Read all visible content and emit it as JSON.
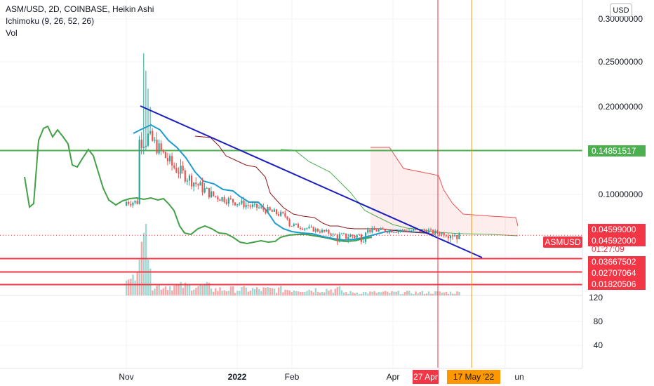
{
  "legend": {
    "title": "ASM/USD, 2D, COINBASE, Heikin Ashi",
    "ichimoku": "Ichimoku (9, 26, 52, 26)",
    "volume": "Vol"
  },
  "currency_button": "USD",
  "chart_data": {
    "type": "candlestick",
    "symbol": "ASMUSD",
    "price_axis": {
      "ticks": [
        "0.30000000",
        "0.25000000",
        "0.20000000",
        "0.10000000"
      ],
      "tick_values": [
        0.3,
        0.25,
        0.2,
        0.1
      ]
    },
    "volume_axis": {
      "ticks": [
        "120",
        "80",
        "40"
      ],
      "tick_values": [
        120,
        80,
        40
      ]
    },
    "time_axis": {
      "ticks": [
        "Nov",
        "2022",
        "Feb",
        "Apr",
        "un"
      ],
      "bold": [
        false,
        true,
        false,
        false,
        false
      ],
      "markers": [
        {
          "label": "27 Apr",
          "color": "#f23645"
        },
        {
          "label": "17 May '22",
          "color": "#ff9800"
        }
      ]
    },
    "price_labels": [
      {
        "text": "0.14851517",
        "value": 0.14851517,
        "color": "#4caf50"
      },
      {
        "text": "0.04599000",
        "value": 0.04599,
        "color": "#f23645"
      },
      {
        "text": "0.04592000",
        "value": 0.04592,
        "color": "#f23645"
      },
      {
        "text": "01:27:09",
        "value": 0.0435,
        "color": "#f23645"
      },
      {
        "text": "0.03667502",
        "value": 0.03667502,
        "color": "#f23645"
      },
      {
        "text": "0.02707064",
        "value": 0.02707064,
        "color": "#f23645"
      },
      {
        "text": "0.01820506",
        "value": 0.01820506,
        "color": "#f23645"
      }
    ],
    "symbol_tag": "ASMUSD",
    "horizontal_lines": [
      {
        "value": 0.14851517,
        "color": "#4caf50"
      },
      {
        "value": 0.03667502,
        "color": "#f23645"
      },
      {
        "value": 0.02707064,
        "color": "#f23645"
      },
      {
        "value": 0.01820506,
        "color": "#f23645"
      }
    ],
    "trendline": {
      "from": {
        "bar": 16,
        "value": 0.2
      },
      "to": {
        "bar": 198,
        "value": 0.025
      },
      "color": "#1c1fc0"
    },
    "colors": {
      "up": "#26a69a",
      "down": "#ef5350",
      "conversion": "#2196f3",
      "lagging": "#43a047",
      "base": "#8b1a1a",
      "cloud_up": "#4caf50",
      "cloud_down": "#ef5350"
    }
  }
}
